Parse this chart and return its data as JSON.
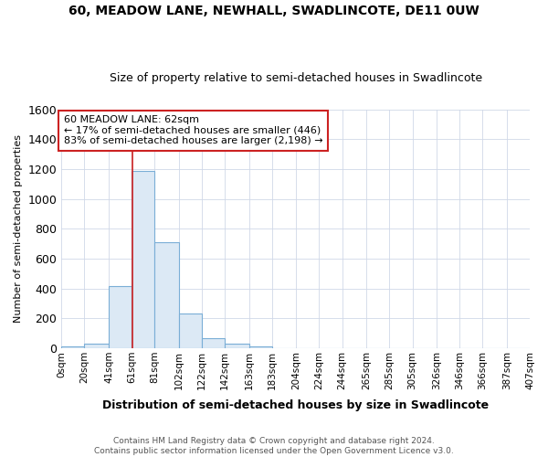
{
  "title": "60, MEADOW LANE, NEWHALL, SWADLINCOTE, DE11 0UW",
  "subtitle": "Size of property relative to semi-detached houses in Swadlincote",
  "xlabel": "Distribution of semi-detached houses by size in Swadlincote",
  "ylabel": "Number of semi-detached properties",
  "footnote": "Contains HM Land Registry data © Crown copyright and database right 2024.\nContains public sector information licensed under the Open Government Licence v3.0.",
  "bar_edges": [
    0,
    20,
    41,
    61,
    81,
    102,
    122,
    142,
    163,
    183,
    204,
    224,
    244,
    265,
    285,
    305,
    326,
    346,
    366,
    387,
    407
  ],
  "bar_heights": [
    10,
    30,
    415,
    1185,
    710,
    230,
    65,
    30,
    15,
    0,
    0,
    0,
    0,
    0,
    0,
    0,
    0,
    0,
    0,
    0
  ],
  "bar_color": "#dce9f5",
  "bar_edge_color": "#7aaed6",
  "grid_color": "#d0d8e8",
  "bg_color": "#ffffff",
  "fig_bg_color": "#ffffff",
  "red_line_x": 62,
  "annotation_line1": "60 MEADOW LANE: 62sqm",
  "annotation_line2": "← 17% of semi-detached houses are smaller (446)",
  "annotation_line3": "83% of semi-detached houses are larger (2,198) →",
  "annotation_box_color": "#ffffff",
  "annotation_border_color": "#cc2222",
  "red_line_color": "#cc2222",
  "ylim": [
    0,
    1600
  ],
  "yticks": [
    0,
    200,
    400,
    600,
    800,
    1000,
    1200,
    1400,
    1600
  ],
  "tick_labels": [
    "0sqm",
    "20sqm",
    "41sqm",
    "61sqm",
    "81sqm",
    "102sqm",
    "122sqm",
    "142sqm",
    "163sqm",
    "183sqm",
    "204sqm",
    "224sqm",
    "244sqm",
    "265sqm",
    "285sqm",
    "305sqm",
    "326sqm",
    "346sqm",
    "366sqm",
    "387sqm",
    "407sqm"
  ]
}
